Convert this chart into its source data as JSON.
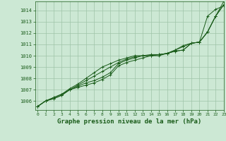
{
  "title": "Graphe pression niveau de la mer (hPa)",
  "bg_color": "#cce8d4",
  "grid_color": "#9fc4a8",
  "line_color": "#1a5c1a",
  "xlim": [
    -0.3,
    23
  ],
  "ylim": [
    1005.2,
    1014.8
  ],
  "yticks": [
    1006,
    1007,
    1008,
    1009,
    1010,
    1011,
    1012,
    1013,
    1014
  ],
  "xticks": [
    0,
    1,
    2,
    3,
    4,
    5,
    6,
    7,
    8,
    9,
    10,
    11,
    12,
    13,
    14,
    15,
    16,
    17,
    18,
    19,
    20,
    21,
    22,
    23
  ],
  "series": [
    [
      1005.5,
      1006.0,
      1006.2,
      1006.5,
      1007.0,
      1007.2,
      1007.4,
      1007.6,
      1007.9,
      1008.3,
      1009.1,
      1009.4,
      1009.6,
      1009.8,
      1010.0,
      1010.0,
      1010.2,
      1010.4,
      1010.5,
      1011.1,
      1011.2,
      1013.5,
      1014.1,
      1014.4
    ],
    [
      1005.5,
      1006.0,
      1006.2,
      1006.5,
      1007.0,
      1007.3,
      1007.6,
      1007.8,
      1008.1,
      1008.5,
      1009.3,
      1009.6,
      1009.8,
      1010.0,
      1010.1,
      1010.1,
      1010.2,
      1010.4,
      1010.5,
      1011.1,
      1011.2,
      1012.1,
      1013.5,
      1014.5
    ],
    [
      1005.5,
      1006.0,
      1006.3,
      1006.6,
      1007.0,
      1007.4,
      1007.8,
      1008.2,
      1008.6,
      1009.0,
      1009.4,
      1009.7,
      1009.9,
      1010.0,
      1010.0,
      1010.1,
      1010.2,
      1010.5,
      1010.8,
      1011.1,
      1011.2,
      1012.1,
      1013.5,
      1014.5
    ],
    [
      1005.5,
      1006.0,
      1006.3,
      1006.6,
      1007.1,
      1007.5,
      1008.0,
      1008.5,
      1009.0,
      1009.3,
      1009.6,
      1009.8,
      1010.0,
      1010.0,
      1010.0,
      1010.1,
      1010.2,
      1010.5,
      1010.9,
      1011.1,
      1011.2,
      1012.1,
      1013.5,
      1014.8
    ]
  ]
}
